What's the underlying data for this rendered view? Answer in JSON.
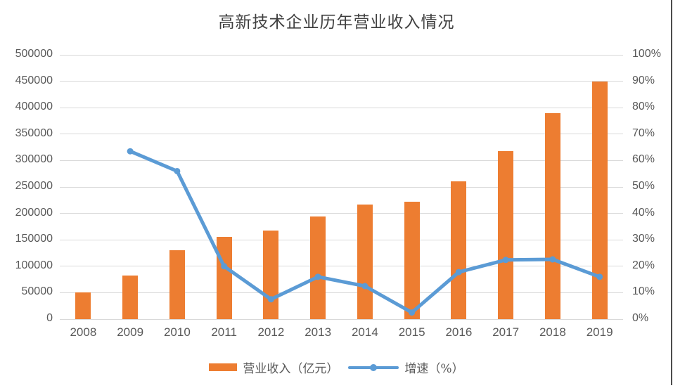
{
  "title": "高新技术企业历年营业收入情况",
  "colors": {
    "bar": "#ED7D31",
    "line": "#5B9BD5",
    "grid": "#D9D9D9",
    "axis_text": "#595959",
    "title_text": "#404040"
  },
  "chart_data": {
    "type": "bar",
    "subtype": "bar+line combo, dual axis",
    "title": "高新技术企业历年营业收入情况",
    "categories": [
      "2008",
      "2009",
      "2010",
      "2011",
      "2012",
      "2013",
      "2014",
      "2015",
      "2016",
      "2017",
      "2018",
      "2019"
    ],
    "series": [
      {
        "name": "营业收入（亿元）",
        "type": "bar",
        "axis": "left",
        "color": "#ED7D31",
        "values": [
          51000,
          83000,
          130000,
          155000,
          167000,
          194000,
          217000,
          222000,
          260000,
          318000,
          389000,
          450000
        ]
      },
      {
        "name": "增速（%）",
        "type": "line",
        "axis": "right",
        "color": "#5B9BD5",
        "values": [
          null,
          63.5,
          56.0,
          20.0,
          7.5,
          16.0,
          12.5,
          2.5,
          17.8,
          22.4,
          22.6,
          16.0
        ]
      }
    ],
    "left_axis": {
      "min": 0,
      "max": 500000,
      "step": 50000,
      "tick_labels_top_to_bottom": [
        "500000",
        "450000",
        "400000",
        "350000",
        "300000",
        "250000",
        "200000",
        "150000",
        "100000",
        "50000",
        "0"
      ]
    },
    "right_axis": {
      "min": 0,
      "max": 100,
      "step": 10,
      "tick_labels_top_to_bottom": [
        "100%",
        "90%",
        "80%",
        "70%",
        "60%",
        "50%",
        "40%",
        "30%",
        "20%",
        "10%",
        "0%"
      ]
    },
    "grid": true,
    "legend_position": "bottom"
  },
  "legend": {
    "bar_label": "营业收入（亿元）",
    "line_label": "增速（%）"
  }
}
